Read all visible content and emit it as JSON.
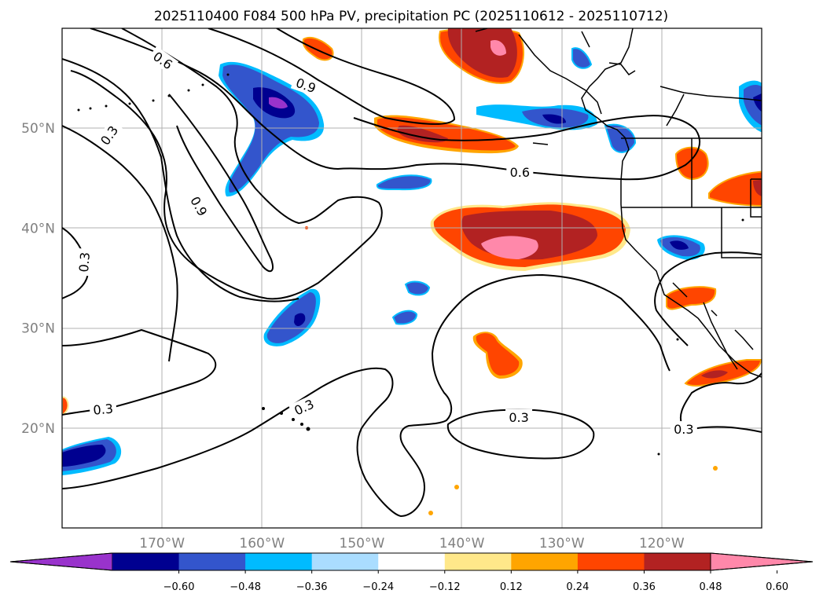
{
  "chart_data": {
    "type": "map-contour",
    "title": "2025110400 F084 500 hPa PV, precipitation PC (2025110612 - 2025110712)",
    "map_extent": {
      "lon": [
        -180,
        -110
      ],
      "lat": [
        10,
        60
      ]
    },
    "lat_ticks": [
      {
        "value": 50,
        "label": "50°N"
      },
      {
        "value": 40,
        "label": "40°N"
      },
      {
        "value": 30,
        "label": "30°N"
      },
      {
        "value": 20,
        "label": "20°N"
      }
    ],
    "lon_ticks": [
      {
        "value": -170,
        "label": "170°W"
      },
      {
        "value": -160,
        "label": "160°W"
      },
      {
        "value": -150,
        "label": "150°W"
      },
      {
        "value": -140,
        "label": "140°W"
      },
      {
        "value": -130,
        "label": "130°W"
      },
      {
        "value": -120,
        "label": "120°W"
      }
    ],
    "pv_contour_levels": [
      0.3,
      0.6,
      0.9
    ],
    "contour_labels": [
      {
        "text": "0.6",
        "lon": -169.9,
        "lat": 56.8,
        "rot": 35
      },
      {
        "text": "0.9",
        "lon": -155.6,
        "lat": 54.3,
        "rot": 20
      },
      {
        "text": "0.3",
        "lon": -175.3,
        "lat": 49.3,
        "rot": -55
      },
      {
        "text": "0.9",
        "lon": -166.3,
        "lat": 42.2,
        "rot": 60
      },
      {
        "text": "0.6",
        "lon": -134.2,
        "lat": 45.6,
        "rot": 0
      },
      {
        "text": "0.3",
        "lon": -177.8,
        "lat": 36.6,
        "rot": -85
      },
      {
        "text": "0.3",
        "lon": -175.9,
        "lat": 21.9,
        "rot": -5
      },
      {
        "text": "0.3",
        "lon": -155.8,
        "lat": 22.1,
        "rot": -25
      },
      {
        "text": "0.3",
        "lon": -134.3,
        "lat": 21.1,
        "rot": 0
      },
      {
        "text": "0.3",
        "lon": -117.8,
        "lat": 19.9,
        "rot": 0
      }
    ],
    "colorbar": {
      "colors": [
        "#9933cc",
        "#000090",
        "#3355cc",
        "#00bbff",
        "#aaddff",
        "#ffffff",
        "#ffe88a",
        "#ffa500",
        "#ff4500",
        "#b22222",
        "#ff88aa"
      ],
      "tick_values": [
        -0.6,
        -0.48,
        -0.36,
        -0.24,
        -0.12,
        0.12,
        0.24,
        0.36,
        0.48,
        0.6
      ],
      "tick_labels": [
        "−0.60",
        "−0.48",
        "−0.36",
        "−0.24",
        "−0.12",
        "0.12",
        "0.24",
        "0.36",
        "0.48",
        "0.60"
      ],
      "extend": "both"
    }
  }
}
